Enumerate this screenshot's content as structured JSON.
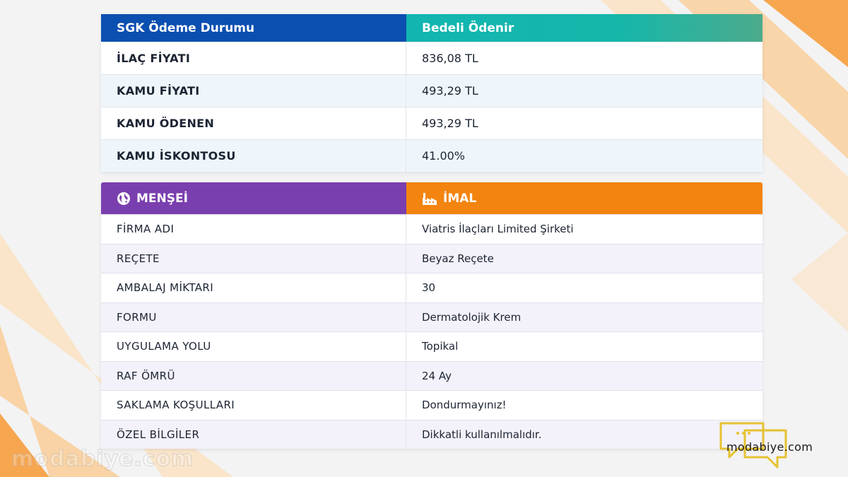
{
  "colors": {
    "sgk_header_left": "#0b4fb0",
    "sgk_header_right": "#12b5b0",
    "mensei_header": "#7a3fae",
    "imal_header": "#f2840f",
    "accent_orange": "#f7a650"
  },
  "sgk_table": {
    "header_left": "SGK Ödeme Durumu",
    "header_right": "Bedeli Ödenir",
    "rows": [
      {
        "label": "İLAÇ FİYATI",
        "value": "836,08 TL"
      },
      {
        "label": "KAMU FİYATI",
        "value": "493,29 TL"
      },
      {
        "label": "KAMU ÖDENEN",
        "value": "493,29 TL"
      },
      {
        "label": "KAMU İSKONTOSU",
        "value": "41.00%"
      }
    ]
  },
  "info_table": {
    "header_left": "MENŞEİ",
    "header_left_icon": "globe-icon",
    "header_right": "İMAL",
    "header_right_icon": "factory-icon",
    "rows": [
      {
        "label": "FİRMA ADI",
        "value": "Viatris İlaçları Limited Şirketi"
      },
      {
        "label": "REÇETE",
        "value": "Beyaz Reçete"
      },
      {
        "label": "AMBALAJ MİKTARI",
        "value": "30"
      },
      {
        "label": "FORMU",
        "value": "Dermatolojik Krem"
      },
      {
        "label": "UYGULAMA YOLU",
        "value": "Topikal"
      },
      {
        "label": "RAF ÖMRÜ",
        "value": "24 Ay"
      },
      {
        "label": "SAKLAMA KOŞULLARI",
        "value": "Dondurmayınız!"
      },
      {
        "label": "ÖZEL BİLGİLER",
        "value": "Dikkatli kullanılmalıdır."
      }
    ]
  },
  "watermark": {
    "left_text": "modabiye.com",
    "logo_text": "modabiye.com",
    "logo_icon": "chat-bubbles-icon"
  }
}
